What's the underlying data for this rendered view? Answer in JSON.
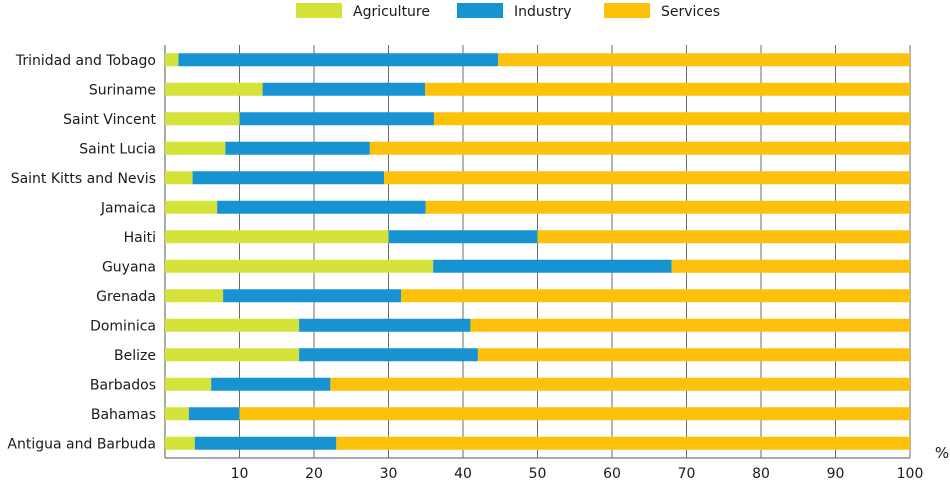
{
  "chart_data": {
    "type": "bar",
    "orientation": "horizontal",
    "stacked": true,
    "title": "",
    "xlabel": "",
    "ylabel": "",
    "unit_label": "%",
    "xlim": [
      0,
      100
    ],
    "xticks": [
      10,
      20,
      30,
      40,
      50,
      60,
      70,
      80,
      90,
      100
    ],
    "grid": "vertical",
    "legend_position": "top-center",
    "categories": [
      "Trinidad and Tobago",
      "Suriname",
      "Saint Vincent",
      "Saint Lucia",
      "Saint Kitts and Nevis",
      "Jamaica",
      "Haiti",
      "Guyana",
      "Grenada",
      "Dominica",
      "Belize",
      "Barbados",
      "Bahamas",
      "Antigua and Barbuda"
    ],
    "series": [
      {
        "name": "Agriculture",
        "color": "#d4e23a",
        "values": [
          1.8,
          13.1,
          10.0,
          8.1,
          3.7,
          7.0,
          30.0,
          36.0,
          7.8,
          18.0,
          18.0,
          6.2,
          3.2,
          4.0
        ]
      },
      {
        "name": "Industry",
        "color": "#1793d1",
        "values": [
          42.9,
          21.8,
          26.1,
          19.4,
          25.7,
          28.0,
          20.0,
          32.0,
          23.9,
          23.0,
          24.0,
          16.0,
          6.8,
          19.0
        ]
      },
      {
        "name": "Services",
        "color": "#fdc10c",
        "values": [
          55.3,
          65.1,
          63.9,
          72.5,
          70.6,
          65.0,
          50.0,
          32.0,
          68.3,
          59.0,
          58.0,
          77.8,
          90.0,
          77.0
        ]
      }
    ]
  }
}
